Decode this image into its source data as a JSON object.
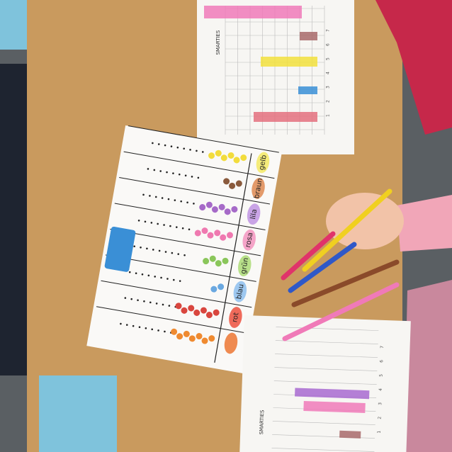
{
  "top_sheet": {
    "title": "SMARTIES",
    "axis": [
      "1",
      "2",
      "3",
      "4",
      "5",
      "6",
      "7"
    ]
  },
  "tally_sheet": {
    "labels": [
      "gelb",
      "braun",
      "lila",
      "rosa",
      "grün",
      "blau",
      "rot"
    ]
  },
  "bottom_sheet": {
    "title": "SMARTIES",
    "axis": [
      "1",
      "2",
      "3",
      "4",
      "5",
      "6",
      "7"
    ]
  }
}
